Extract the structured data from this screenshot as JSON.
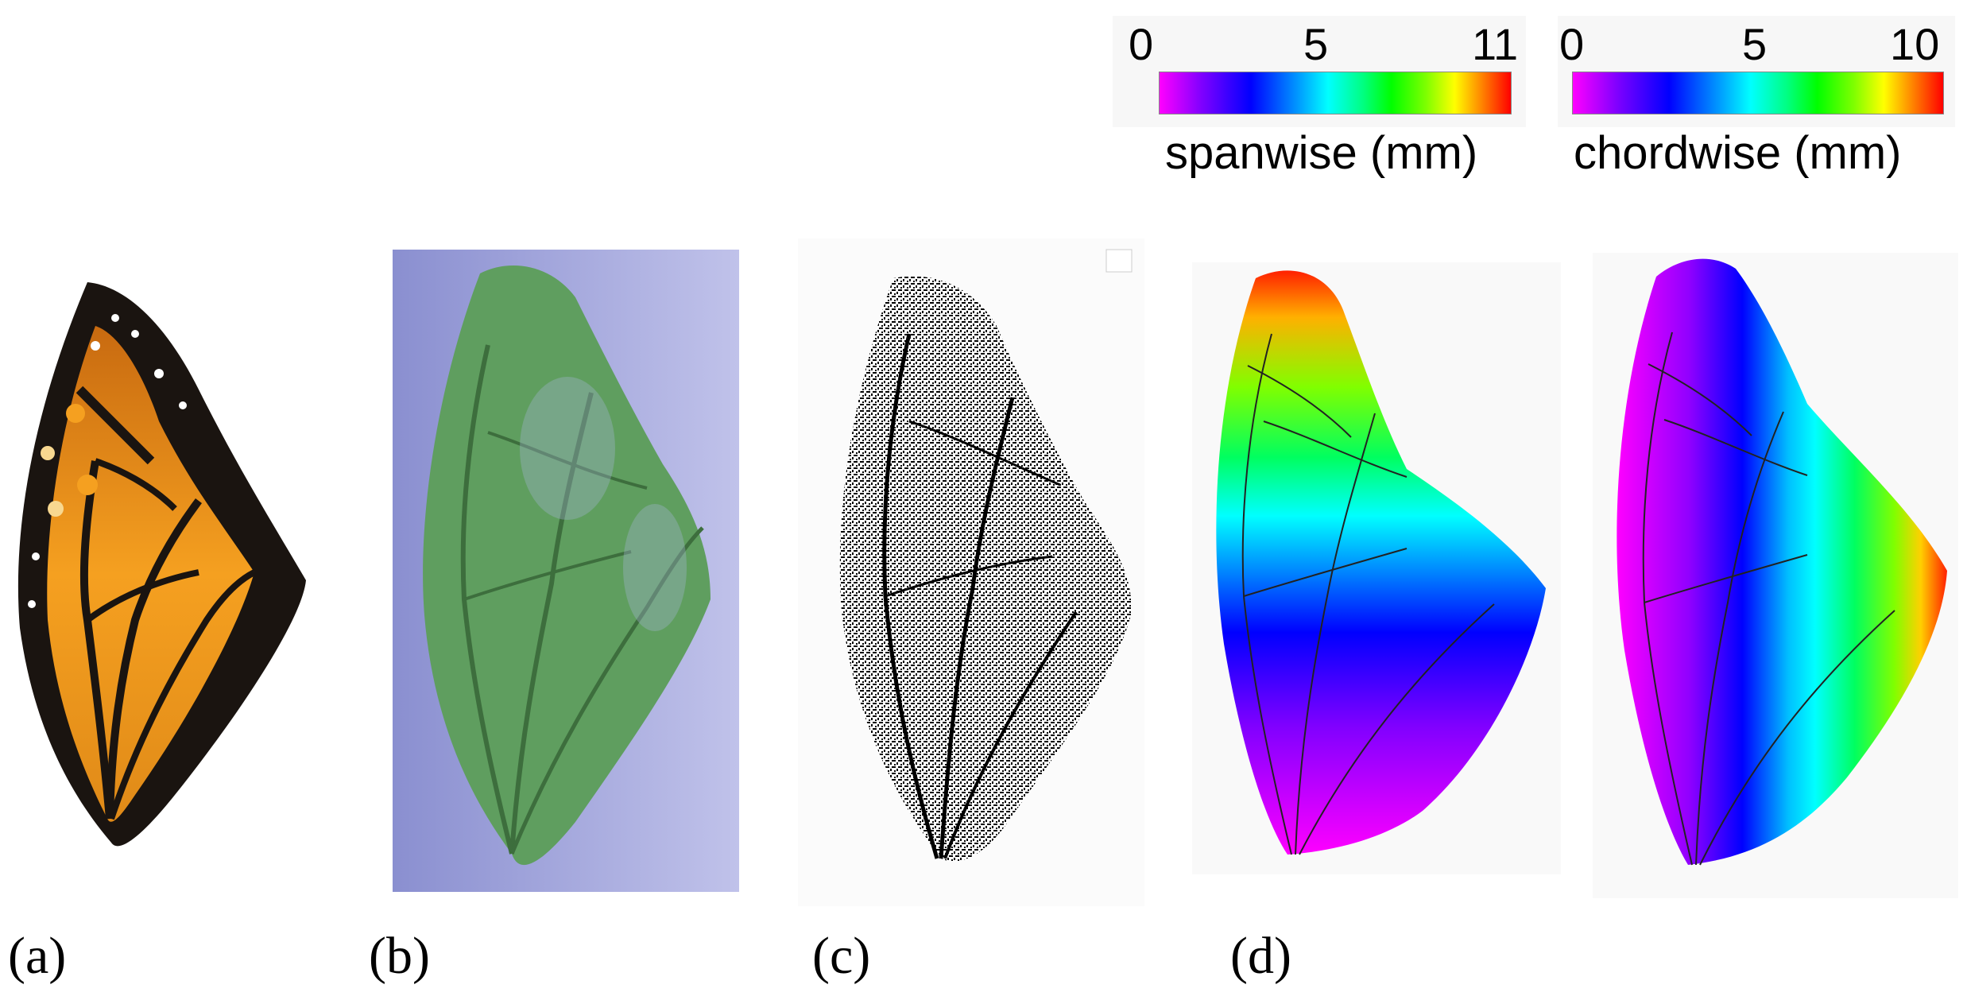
{
  "panels": {
    "a": "(a)",
    "b": "(b)",
    "c": "(c)",
    "d": "(d)"
  },
  "colorbars": [
    {
      "title": "spanwise (mm)",
      "ticks": [
        "0",
        "5",
        "11"
      ],
      "range": [
        0,
        11
      ]
    },
    {
      "title": "chordwise (mm)",
      "ticks": [
        "0",
        "5",
        "10"
      ],
      "range": [
        0,
        10
      ]
    }
  ],
  "colors": {
    "wing_orange": "#f29a1a",
    "wing_black": "#1a1410",
    "scan_green": "#5a9a5a",
    "scan_bg": "#9a9ed8"
  }
}
